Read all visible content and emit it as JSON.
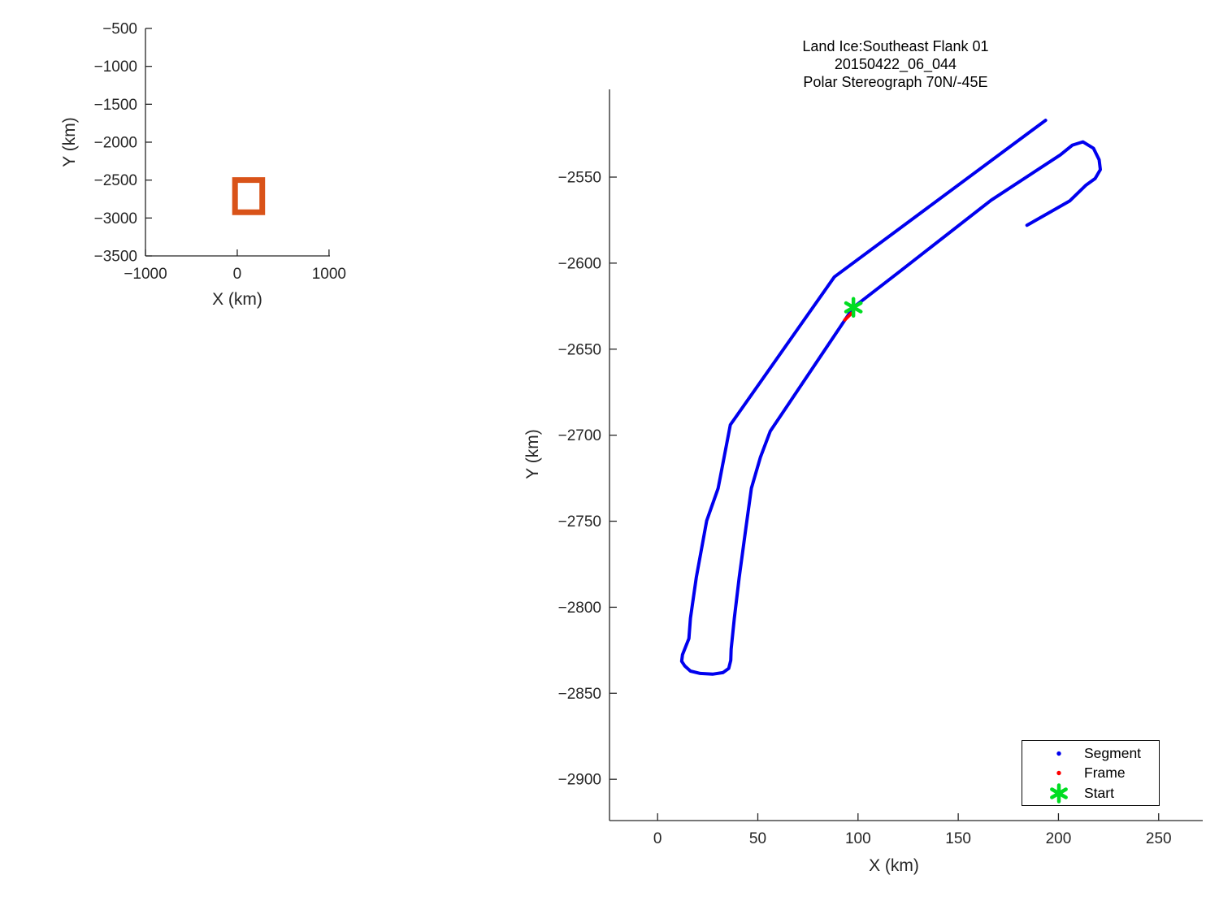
{
  "figure": {
    "background": "#ffffff",
    "text_color": "#262626",
    "title_color": "#000000"
  },
  "chart_data": [
    {
      "id": "overview",
      "type": "line",
      "title": "",
      "xlabel": "X (km)",
      "ylabel": "Y (km)",
      "xlim": [
        -1000,
        1010
      ],
      "ylim": [
        -3500,
        -500
      ],
      "x_ticks": [
        -1000,
        0,
        1000
      ],
      "y_ticks": [
        -500,
        -1000,
        -1500,
        -2000,
        -2500,
        -3000,
        -3500
      ],
      "grid": false,
      "series": [
        {
          "name": "view-extent-box",
          "color": "#D95319",
          "linewidth": 7,
          "closed": true,
          "points": [
            [
              -24,
              -2499
            ],
            [
              272,
              -2499
            ],
            [
              272,
              -2924
            ],
            [
              -24,
              -2924
            ]
          ]
        }
      ]
    },
    {
      "id": "main",
      "type": "line",
      "title_lines": [
        "Land Ice:Southeast Flank 01",
        "20150422_06_044",
        "Polar Stereograph 70N/-45E"
      ],
      "xlabel": "X (km)",
      "ylabel": "Y (km)",
      "xlim": [
        -24,
        272
      ],
      "ylim": [
        -2924,
        -2499
      ],
      "x_ticks": [
        0,
        50,
        100,
        150,
        200,
        250
      ],
      "y_ticks": [
        -2550,
        -2600,
        -2650,
        -2700,
        -2750,
        -2800,
        -2850,
        -2900
      ],
      "grid": false,
      "legend": {
        "position": "bottom-right",
        "entries": [
          {
            "label": "Segment",
            "marker": "dot",
            "color": "#0000EE"
          },
          {
            "label": "Frame",
            "marker": "dot",
            "color": "#FF0000"
          },
          {
            "label": "Start",
            "marker": "asterisk",
            "color": "#00DD22"
          }
        ]
      },
      "series": [
        {
          "name": "Segment",
          "color": "#0000EE",
          "linewidth": 4,
          "points": [
            [
              193.6,
              -2517.0
            ],
            [
              88.2,
              -2608.0
            ],
            [
              36.3,
              -2694.0
            ],
            [
              30.2,
              -2730.8
            ],
            [
              24.5,
              -2749.7
            ],
            [
              19.3,
              -2782.7
            ],
            [
              16.4,
              -2806.4
            ],
            [
              15.6,
              -2818.2
            ],
            [
              12.4,
              -2827.6
            ],
            [
              12.0,
              -2831.4
            ],
            [
              13.6,
              -2834.2
            ],
            [
              16.4,
              -2837.1
            ],
            [
              21.3,
              -2838.5
            ],
            [
              27.4,
              -2838.9
            ],
            [
              32.6,
              -2838.0
            ],
            [
              35.5,
              -2835.6
            ],
            [
              36.5,
              -2830.9
            ],
            [
              36.7,
              -2824.3
            ],
            [
              38.3,
              -2806.4
            ],
            [
              40.7,
              -2782.7
            ],
            [
              44.0,
              -2754.4
            ],
            [
              46.8,
              -2730.8
            ],
            [
              51.3,
              -2712.8
            ],
            [
              56.2,
              -2697.7
            ],
            [
              97.7,
              -2625.7
            ],
            [
              121.0,
              -2604.7
            ],
            [
              166.4,
              -2563.4
            ],
            [
              200.9,
              -2537.1
            ],
            [
              207.0,
              -2531.4
            ],
            [
              212.2,
              -2529.5
            ],
            [
              217.5,
              -2533.3
            ],
            [
              220.3,
              -2539.9
            ],
            [
              220.9,
              -2545.6
            ],
            [
              218.3,
              -2550.8
            ],
            [
              213.8,
              -2554.6
            ],
            [
              205.6,
              -2563.9
            ],
            [
              184.3,
              -2578.0
            ]
          ]
        },
        {
          "name": "Frame",
          "color": "#FF0000",
          "linewidth": 4,
          "points": [
            [
              93.4,
              -2633.0
            ],
            [
              95.1,
              -2631.1
            ],
            [
              96.7,
              -2629.2
            ]
          ]
        },
        {
          "name": "Start",
          "color": "#00DD22",
          "marker": "asterisk",
          "marker_size": 21,
          "points": [
            [
              97.7,
              -2625.7
            ]
          ]
        }
      ]
    }
  ]
}
